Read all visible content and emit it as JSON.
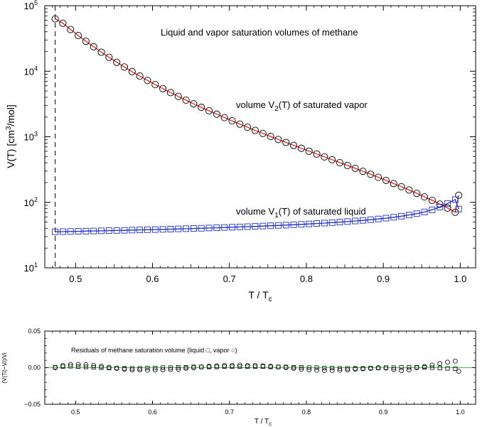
{
  "chart_data": [
    {
      "type": "scatter",
      "title": "Liquid and vapor saturation volumes of methane",
      "xlabel": "T / Tc",
      "ylabel": "V(T) [cm3/mol]",
      "ylabel_parts": {
        "pre": "V(T) [cm",
        "sup": "3",
        "post": "/mol]"
      },
      "xlabel_parts": {
        "pre": "T / T",
        "sub": "c"
      },
      "xlim": [
        0.46,
        1.02
      ],
      "ylim": [
        10,
        100000
      ],
      "yscale": "log",
      "x_ticks": [
        "0.5",
        "0.6",
        "0.7",
        "0.8",
        "0.9",
        "1.0"
      ],
      "y_ticks": [
        {
          "base": "10",
          "exp": "1"
        },
        {
          "base": "10",
          "exp": "2"
        },
        {
          "base": "10",
          "exp": "3"
        },
        {
          "base": "10",
          "exp": "4"
        },
        {
          "base": "10",
          "exp": "5"
        }
      ],
      "reference_line_x": 0.4735,
      "annotations": {
        "vapor": {
          "pre": "volume V",
          "sub": "2",
          "post": "(T) of saturated vapor"
        },
        "liquid": {
          "pre": "volume V",
          "sub": "1",
          "post": "(T) of saturated liquid"
        }
      },
      "series": [
        {
          "name": "saturated vapor",
          "marker": "circle",
          "fit_color": "#e8291c",
          "x": [
            0.4735,
            0.4835,
            0.4935,
            0.5035,
            0.5135,
            0.5235,
            0.5335,
            0.5435,
            0.5535,
            0.5635,
            0.5735,
            0.5835,
            0.5935,
            0.6035,
            0.6135,
            0.6235,
            0.6335,
            0.6435,
            0.6535,
            0.6635,
            0.6735,
            0.6835,
            0.6935,
            0.7035,
            0.7135,
            0.7235,
            0.7335,
            0.7435,
            0.7535,
            0.7635,
            0.7735,
            0.7835,
            0.7935,
            0.8035,
            0.8135,
            0.8235,
            0.8335,
            0.8435,
            0.8535,
            0.8635,
            0.8735,
            0.8835,
            0.8935,
            0.9035,
            0.9135,
            0.9235,
            0.9335,
            0.9435,
            0.9535,
            0.9635,
            0.9735,
            0.9835,
            0.9935,
            0.998
          ],
          "values": [
            63000,
            54000,
            43300,
            35000,
            28600,
            23600,
            19500,
            16300,
            13700,
            11600,
            9850,
            8430,
            7240,
            6250,
            5420,
            4720,
            4130,
            3620,
            3180,
            2810,
            2490,
            2210,
            1960,
            1750,
            1560,
            1400,
            1250,
            1125,
            1010,
            909,
            819,
            739,
            667,
            603,
            545,
            493,
            446,
            403,
            365,
            330,
            297,
            268,
            241,
            216,
            193,
            173,
            154,
            137,
            121,
            107,
            93.8,
            81.7,
            70.4,
            128
          ]
        },
        {
          "name": "saturated liquid",
          "marker": "square",
          "fit_color": "#1f2fd0",
          "x": [
            0.4735,
            0.4835,
            0.4935,
            0.5035,
            0.5135,
            0.5235,
            0.5335,
            0.5435,
            0.5535,
            0.5635,
            0.5735,
            0.5835,
            0.5935,
            0.6035,
            0.6135,
            0.6235,
            0.6335,
            0.6435,
            0.6535,
            0.6635,
            0.6735,
            0.6835,
            0.6935,
            0.7035,
            0.7135,
            0.7235,
            0.7335,
            0.7435,
            0.7535,
            0.7635,
            0.7735,
            0.7835,
            0.7935,
            0.8035,
            0.8135,
            0.8235,
            0.8335,
            0.8435,
            0.8535,
            0.8635,
            0.8735,
            0.8835,
            0.8935,
            0.9035,
            0.9135,
            0.9235,
            0.9335,
            0.9435,
            0.9535,
            0.9635,
            0.9735,
            0.9835,
            0.9935,
            0.998
          ],
          "values": [
            35.5,
            35.7,
            35.9,
            36.1,
            36.3,
            36.5,
            36.7,
            37.0,
            37.2,
            37.4,
            37.7,
            37.9,
            38.2,
            38.4,
            38.7,
            39.0,
            39.3,
            39.6,
            39.9,
            40.2,
            40.6,
            40.9,
            41.3,
            41.7,
            42.1,
            42.5,
            42.9,
            43.4,
            43.9,
            44.4,
            44.9,
            45.5,
            46.1,
            46.8,
            47.5,
            48.2,
            49.0,
            49.9,
            50.8,
            51.9,
            53.0,
            54.3,
            55.7,
            57.3,
            59.2,
            61.4,
            64.0,
            67.2,
            71.3,
            76.8,
            84.5,
            96.0,
            110.0,
            79.0
          ]
        }
      ]
    },
    {
      "type": "scatter",
      "title": "Residuals of methane saturation volume (liquid □, vapor ○)",
      "xlabel": "T / Tc",
      "xlabel_parts": {
        "pre": "T / T",
        "sub": "c"
      },
      "ylabel": "(V(Ti)−Vi)/Vi",
      "xlim": [
        0.46,
        1.02
      ],
      "ylim": [
        -0.05,
        0.05
      ],
      "x_ticks": [
        "0.5",
        "0.6",
        "0.7",
        "0.8",
        "0.9",
        "1.0"
      ],
      "y_ticks": [
        "0.05",
        "0.00",
        "−0.05"
      ],
      "zero_line_color": "#3fc43f",
      "series": [
        {
          "name": "liquid",
          "marker": "square",
          "x": [
            0.4735,
            0.4835,
            0.4935,
            0.5035,
            0.5135,
            0.5235,
            0.5335,
            0.5435,
            0.5535,
            0.5635,
            0.5735,
            0.5835,
            0.5935,
            0.6035,
            0.6135,
            0.6235,
            0.6335,
            0.6435,
            0.6535,
            0.6635,
            0.6735,
            0.6835,
            0.6935,
            0.7035,
            0.7135,
            0.7235,
            0.7335,
            0.7435,
            0.7535,
            0.7635,
            0.7735,
            0.7835,
            0.7935,
            0.8035,
            0.8135,
            0.8235,
            0.8335,
            0.8435,
            0.8535,
            0.8635,
            0.8735,
            0.8835,
            0.8935,
            0.9035,
            0.9135,
            0.9235,
            0.9335,
            0.9435,
            0.9535,
            0.9635,
            0.9735,
            0.9835,
            0.9935
          ],
          "values": [
            0.0005,
            0.0015,
            0.002,
            0.0015,
            0.001,
            0.0005,
            0.0,
            -0.0005,
            -0.0005,
            -0.001,
            -0.001,
            -0.001,
            -0.0005,
            -0.0005,
            0.0,
            0.0,
            0.0005,
            0.0005,
            0.001,
            0.001,
            0.001,
            0.001,
            0.0015,
            0.0015,
            0.0015,
            0.0015,
            0.0015,
            0.0015,
            0.001,
            0.001,
            0.001,
            0.0005,
            0.0005,
            0.0,
            0.0,
            -0.0005,
            -0.0005,
            -0.001,
            -0.001,
            -0.001,
            -0.001,
            -0.0005,
            -0.0005,
            0.0,
            0.0,
            0.0005,
            0.0005,
            0.0005,
            0.0005,
            0.0,
            -0.0005,
            -0.001,
            -0.0015
          ]
        },
        {
          "name": "vapor",
          "marker": "circle",
          "x": [
            0.4735,
            0.4835,
            0.4935,
            0.5035,
            0.5135,
            0.5235,
            0.5335,
            0.5435,
            0.5535,
            0.5635,
            0.5735,
            0.5835,
            0.5935,
            0.6035,
            0.6135,
            0.6235,
            0.6335,
            0.6435,
            0.6535,
            0.6635,
            0.6735,
            0.6835,
            0.6935,
            0.7035,
            0.7135,
            0.7235,
            0.7335,
            0.7435,
            0.7535,
            0.7635,
            0.7735,
            0.7835,
            0.7935,
            0.8035,
            0.8135,
            0.8235,
            0.8335,
            0.8435,
            0.8535,
            0.8635,
            0.8735,
            0.8835,
            0.8935,
            0.9035,
            0.9135,
            0.9235,
            0.9335,
            0.9435,
            0.9535,
            0.9635,
            0.9735,
            0.9835,
            0.9935,
            0.998
          ],
          "values": [
            0.0,
            0.003,
            0.0045,
            0.0045,
            0.004,
            0.003,
            0.002,
            0.0005,
            -0.001,
            -0.002,
            -0.003,
            -0.003,
            -0.0035,
            -0.003,
            -0.003,
            -0.0025,
            -0.002,
            -0.001,
            0.0,
            0.001,
            0.002,
            0.0025,
            0.003,
            0.003,
            0.0035,
            0.003,
            0.003,
            0.0025,
            0.002,
            0.001,
            0.0,
            -0.001,
            -0.002,
            -0.003,
            -0.0035,
            -0.004,
            -0.004,
            -0.0035,
            -0.003,
            -0.002,
            -0.0015,
            -0.001,
            0.0,
            -0.0005,
            -0.0025,
            -0.004,
            -0.003,
            0.0,
            0.0015,
            0.0035,
            0.0055,
            0.0075,
            0.009,
            -0.005
          ]
        }
      ]
    }
  ]
}
